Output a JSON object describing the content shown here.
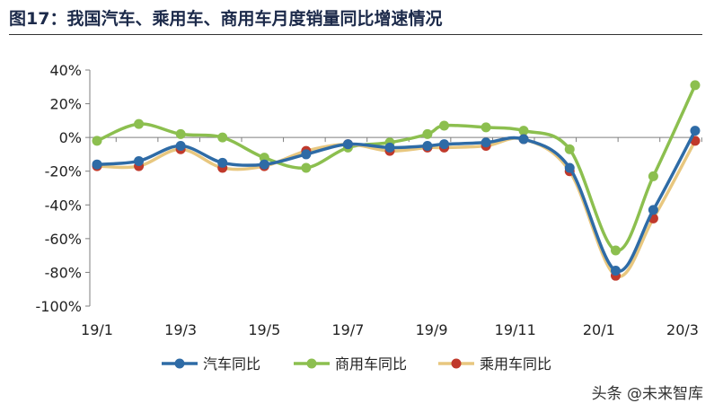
{
  "figure_title": "图17：我国汽车、乘用车、商用车月度销量同比增速情况",
  "watermark": "头条 @未来智库",
  "colors": {
    "auto": "#2e6ba6",
    "commercial": "#8cbf4f",
    "passenger": "#e8c77f",
    "passenger_marker": "#c0392b",
    "axis": "#7f7f7f"
  },
  "chart_data": {
    "type": "line",
    "title": "",
    "xlabel": "",
    "ylabel": "",
    "x": [
      "19/1",
      "19/2",
      "19/3",
      "19/4",
      "19/5",
      "19/6",
      "19/7",
      "19/8",
      "19/9",
      "19/10",
      "19/11",
      "19/12",
      "20/1",
      "20/2",
      "20/3"
    ],
    "x_tick_labels": [
      "19/1",
      "19/3",
      "19/5",
      "19/7",
      "19/9",
      "19/11",
      "20/1",
      "20/3"
    ],
    "y_ticks": [
      "40%",
      "20%",
      "0%",
      "-20%",
      "-40%",
      "-60%",
      "-80%",
      "-100%"
    ],
    "ylim": [
      -100,
      40
    ],
    "grid": false,
    "legend_position": "bottom",
    "series": [
      {
        "name": "汽车同比",
        "points": [
          [
            0.0,
            -16
          ],
          [
            1.0,
            -14
          ],
          [
            2.0,
            -5
          ],
          [
            3.0,
            -15
          ],
          [
            4.0,
            -16
          ],
          [
            5.0,
            -10
          ],
          [
            6.0,
            -4
          ],
          [
            7.0,
            -6
          ],
          [
            7.9,
            -5
          ],
          [
            8.3,
            -4
          ],
          [
            9.3,
            -3
          ],
          [
            10.2,
            -1
          ],
          [
            11.3,
            -18
          ],
          [
            12.4,
            -79
          ],
          [
            13.3,
            -43
          ],
          [
            14.3,
            4
          ]
        ]
      },
      {
        "name": "商用车同比",
        "points": [
          [
            0.0,
            -2
          ],
          [
            1.0,
            8
          ],
          [
            2.0,
            2
          ],
          [
            3.0,
            0
          ],
          [
            4.0,
            -12
          ],
          [
            5.0,
            -18
          ],
          [
            6.0,
            -6
          ],
          [
            7.0,
            -3
          ],
          [
            7.9,
            2
          ],
          [
            8.3,
            7
          ],
          [
            9.3,
            6
          ],
          [
            10.2,
            4
          ],
          [
            11.3,
            -7
          ],
          [
            12.4,
            -67
          ],
          [
            13.3,
            -23
          ],
          [
            14.3,
            31
          ]
        ]
      },
      {
        "name": "乘用车同比",
        "points": [
          [
            0.0,
            -17
          ],
          [
            1.0,
            -17
          ],
          [
            2.0,
            -7
          ],
          [
            3.0,
            -18
          ],
          [
            4.0,
            -17
          ],
          [
            5.0,
            -8
          ],
          [
            6.0,
            -4
          ],
          [
            7.0,
            -8
          ],
          [
            7.9,
            -6
          ],
          [
            8.3,
            -6
          ],
          [
            9.3,
            -5
          ],
          [
            10.2,
            -1
          ],
          [
            11.3,
            -20
          ],
          [
            12.4,
            -82
          ],
          [
            13.3,
            -48
          ],
          [
            14.3,
            -2
          ]
        ]
      }
    ]
  }
}
